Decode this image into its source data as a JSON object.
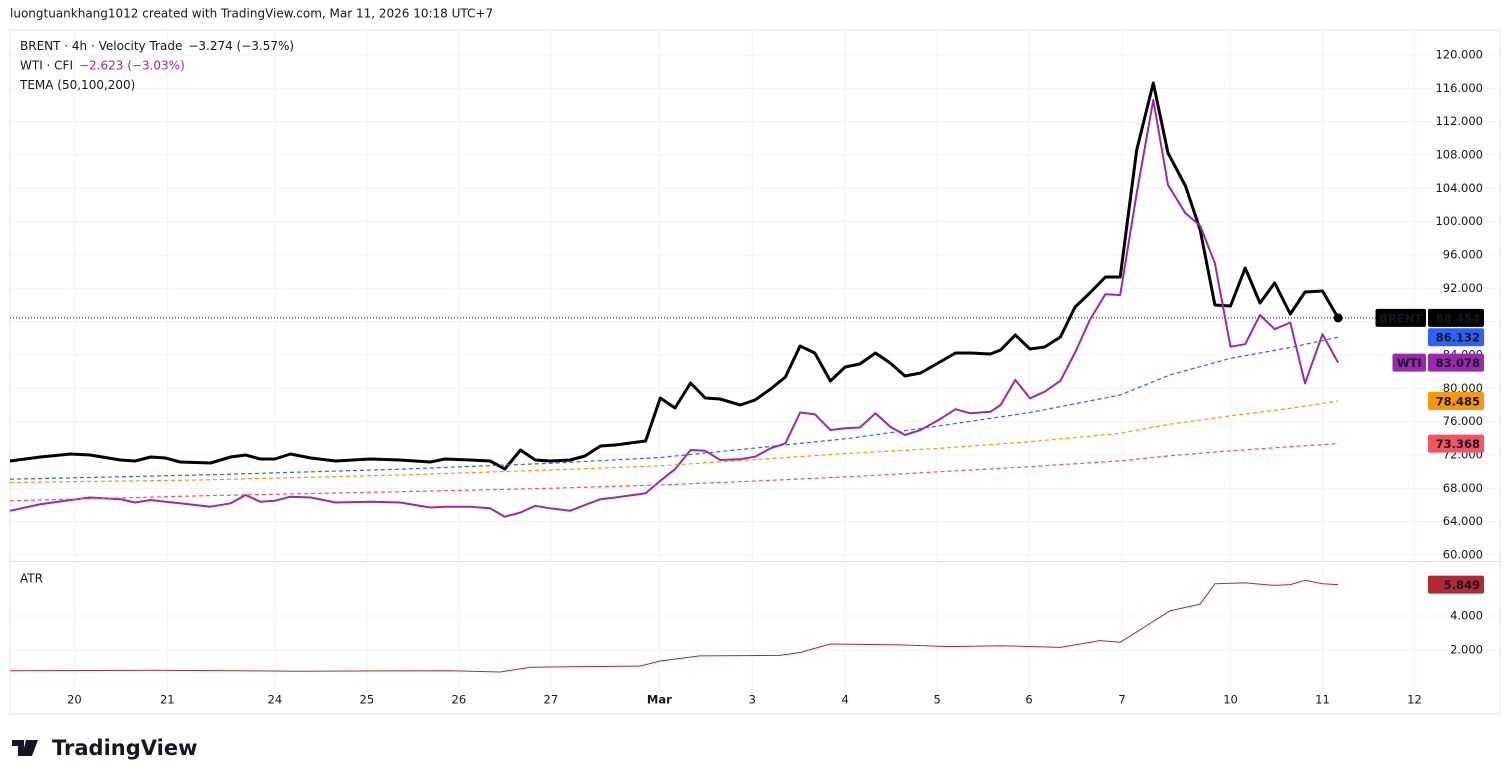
{
  "header": "luongtuankhang1012 created with TradingView.com, Mar 11, 2026 10:18 UTC+7",
  "footer": "TradingView",
  "chart_data": [
    {
      "type": "line",
      "legend": [
        {
          "text": "BRENT · 4h · Velocity Trade",
          "change": "−3.274 (−3.57%)",
          "color": "#131722"
        },
        {
          "text": "WTI · CFI",
          "change": "−2.623 (−3.03%)",
          "color": "#9c27b0"
        },
        {
          "text": "TEMA (50,100,200)"
        }
      ],
      "last_price_line": true,
      "grid": true,
      "xlim": [
        -0.7,
        14.63
      ],
      "ylim": [
        59.4,
        123.0
      ],
      "yticks": [
        {
          "value": 60,
          "label": "60.000"
        },
        {
          "value": 64,
          "label": "64.000"
        },
        {
          "value": 68,
          "label": "68.000"
        },
        {
          "value": 72,
          "label": "72.000"
        },
        {
          "value": 76,
          "label": "76.000"
        },
        {
          "value": 80,
          "label": "80.000"
        },
        {
          "value": 84,
          "label": "84.000"
        },
        {
          "value": 88,
          "label": "88.000"
        },
        {
          "value": 92,
          "label": "92.000"
        },
        {
          "value": 96,
          "label": "96.000"
        },
        {
          "value": 100,
          "label": "100.000"
        },
        {
          "value": 104,
          "label": "104.000"
        },
        {
          "value": 108,
          "label": "108.000"
        },
        {
          "value": 112,
          "label": "112.000"
        },
        {
          "value": 116,
          "label": "116.000"
        },
        {
          "value": 120,
          "label": "120.000"
        }
      ],
      "x": [
        -0.7,
        -0.37,
        -0.04,
        0.17,
        0.5,
        0.66,
        0.83,
        0.99,
        1.15,
        1.48,
        1.7,
        1.86,
        2.02,
        2.18,
        2.35,
        2.57,
        2.84,
        3.22,
        3.54,
        3.87,
        4.03,
        4.3,
        4.52,
        4.68,
        4.85,
        5.01,
        5.17,
        5.39,
        5.55,
        5.72,
        5.88,
        6.21,
        6.37,
        6.53,
        6.7,
        6.86,
        7.02,
        7.24,
        7.4,
        7.57,
        7.73,
        7.89,
        8.05,
        8.22,
        8.38,
        8.54,
        8.71,
        8.87,
        9.03,
        9.2,
        9.41,
        9.58,
        9.74,
        9.96,
        10.07,
        10.23,
        10.39,
        10.55,
        10.72,
        10.88,
        11.04,
        11.21,
        11.37,
        11.55,
        11.73,
        11.89,
        12.08,
        12.24,
        12.4,
        12.57,
        12.73,
        12.89,
        13.05,
        13.22,
        13.38,
        13.57,
        13.74
      ],
      "series": [
        {
          "name": "BRENT",
          "color": "#000000",
          "style": "solid",
          "values": [
            71.28,
            71.76,
            72.12,
            72.0,
            71.4,
            71.28,
            71.76,
            71.64,
            71.16,
            71.04,
            71.76,
            72.0,
            71.52,
            71.52,
            72.12,
            71.64,
            71.28,
            71.52,
            71.4,
            71.16,
            71.52,
            71.4,
            71.28,
            70.32,
            72.6,
            71.4,
            71.28,
            71.4,
            71.88,
            73.08,
            73.2,
            73.68,
            78.84,
            77.64,
            80.64,
            78.84,
            78.72,
            78.0,
            78.6,
            79.92,
            81.36,
            85.08,
            84.24,
            80.88,
            82.56,
            82.92,
            84.24,
            83.04,
            81.48,
            81.84,
            83.16,
            84.24,
            84.24,
            84.12,
            84.6,
            86.4,
            84.72,
            84.96,
            86.16,
            89.76,
            91.44,
            93.36,
            93.36,
            108.6,
            116.64,
            108.24,
            104.28,
            99.0,
            90.0,
            89.88,
            94.44,
            90.24,
            92.64,
            88.92,
            91.56,
            91.68,
            88.454
          ]
        },
        {
          "name": "WTI",
          "color": "#9c27b0",
          "style": "solid",
          "values": [
            65.3,
            66.1,
            66.6,
            66.9,
            66.7,
            66.3,
            66.6,
            66.4,
            66.2,
            65.8,
            66.2,
            67.2,
            66.4,
            66.5,
            67.0,
            66.9,
            66.3,
            66.4,
            66.3,
            65.7,
            65.8,
            65.8,
            65.6,
            64.6,
            65.1,
            65.9,
            65.6,
            65.3,
            66.0,
            66.7,
            66.9,
            67.4,
            68.9,
            70.3,
            72.6,
            72.5,
            71.4,
            71.5,
            71.8,
            72.8,
            73.4,
            77.1,
            76.9,
            75.0,
            75.2,
            75.3,
            77.0,
            75.4,
            74.4,
            75.0,
            76.3,
            77.5,
            77.0,
            77.2,
            78.0,
            81.0,
            78.8,
            79.6,
            80.9,
            84.3,
            88.2,
            91.3,
            91.2,
            103.4,
            114.6,
            104.4,
            101.0,
            99.5,
            95.0,
            85.0,
            85.3,
            88.8,
            87.1,
            87.9,
            80.6,
            86.5,
            83.078
          ]
        },
        {
          "color": "#2962ff",
          "style": "dashed",
          "x": [
            -0.7,
            1.37,
            3.54,
            5.17,
            6.37,
            7.46,
            8.43,
            9.41,
            10.39,
            11.37,
            11.91,
            12.57,
            13.22,
            13.74
          ],
          "values": [
            69.1,
            69.6,
            70.3,
            71.0,
            71.7,
            72.9,
            74.0,
            75.5,
            77.1,
            79.2,
            81.6,
            83.6,
            84.9,
            86.132
          ]
        },
        {
          "color": "#ff9800",
          "style": "dashed",
          "x": [
            -0.7,
            1.37,
            3.54,
            5.17,
            6.37,
            7.46,
            8.43,
            9.41,
            10.39,
            11.37,
            11.91,
            12.57,
            13.22,
            13.74
          ],
          "values": [
            68.7,
            69.0,
            69.6,
            70.2,
            70.7,
            71.5,
            72.2,
            72.8,
            73.6,
            74.6,
            75.7,
            76.7,
            77.6,
            78.485
          ]
        },
        {
          "color": "#f7525f",
          "style": "dashed",
          "x": [
            -0.7,
            1.37,
            3.54,
            5.17,
            6.37,
            7.46,
            8.43,
            9.41,
            10.39,
            11.37,
            11.91,
            12.57,
            13.22,
            13.74
          ],
          "values": [
            66.5,
            67.1,
            67.6,
            68.0,
            68.4,
            68.9,
            69.4,
            70.0,
            70.6,
            71.3,
            71.9,
            72.5,
            73.0,
            73.368
          ]
        }
      ]
    },
    {
      "type": "line",
      "grid": true,
      "xlim": [
        -0.7,
        14.63
      ],
      "ylim": [
        -0.24,
        7.12
      ],
      "yticks": [
        {
          "value": 2,
          "label": "2.000"
        },
        {
          "value": 4,
          "label": "4.000"
        }
      ],
      "xticks": [
        {
          "value": 0,
          "label": "20"
        },
        {
          "value": 1.01,
          "label": "21"
        },
        {
          "value": 2.18,
          "label": "24"
        },
        {
          "value": 3.18,
          "label": "25"
        },
        {
          "value": 4.18,
          "label": "26"
        },
        {
          "value": 5.18,
          "label": "27"
        },
        {
          "value": 6.36,
          "label": "Mar"
        },
        {
          "value": 7.37,
          "label": "3"
        },
        {
          "value": 8.38,
          "label": "4"
        },
        {
          "value": 9.38,
          "label": "5"
        },
        {
          "value": 10.38,
          "label": "6"
        },
        {
          "value": 11.39,
          "label": "7"
        },
        {
          "value": 12.57,
          "label": "10"
        },
        {
          "value": 13.57,
          "label": "11"
        },
        {
          "value": 14.57,
          "label": "12"
        }
      ],
      "series": [
        {
          "name": "ATR",
          "color": "#b22833",
          "style": "solid",
          "x": [
            -0.7,
            0.83,
            2.46,
            4.09,
            4.63,
            4.96,
            5.28,
            6.15,
            6.37,
            6.8,
            7.67,
            7.89,
            8.22,
            8.98,
            9.52,
            10.07,
            10.72,
            11.15,
            11.37,
            11.59,
            11.91,
            12.24,
            12.4,
            12.73,
            13.05,
            13.22,
            13.38,
            13.57,
            13.74
          ],
          "values": [
            0.77,
            0.8,
            0.75,
            0.78,
            0.7,
            0.98,
            1.0,
            1.05,
            1.35,
            1.65,
            1.68,
            1.85,
            2.35,
            2.3,
            2.2,
            2.25,
            2.15,
            2.55,
            2.45,
            3.2,
            4.3,
            4.7,
            5.9,
            5.95,
            5.8,
            5.85,
            6.1,
            5.9,
            5.849
          ]
        }
      ]
    }
  ]
}
